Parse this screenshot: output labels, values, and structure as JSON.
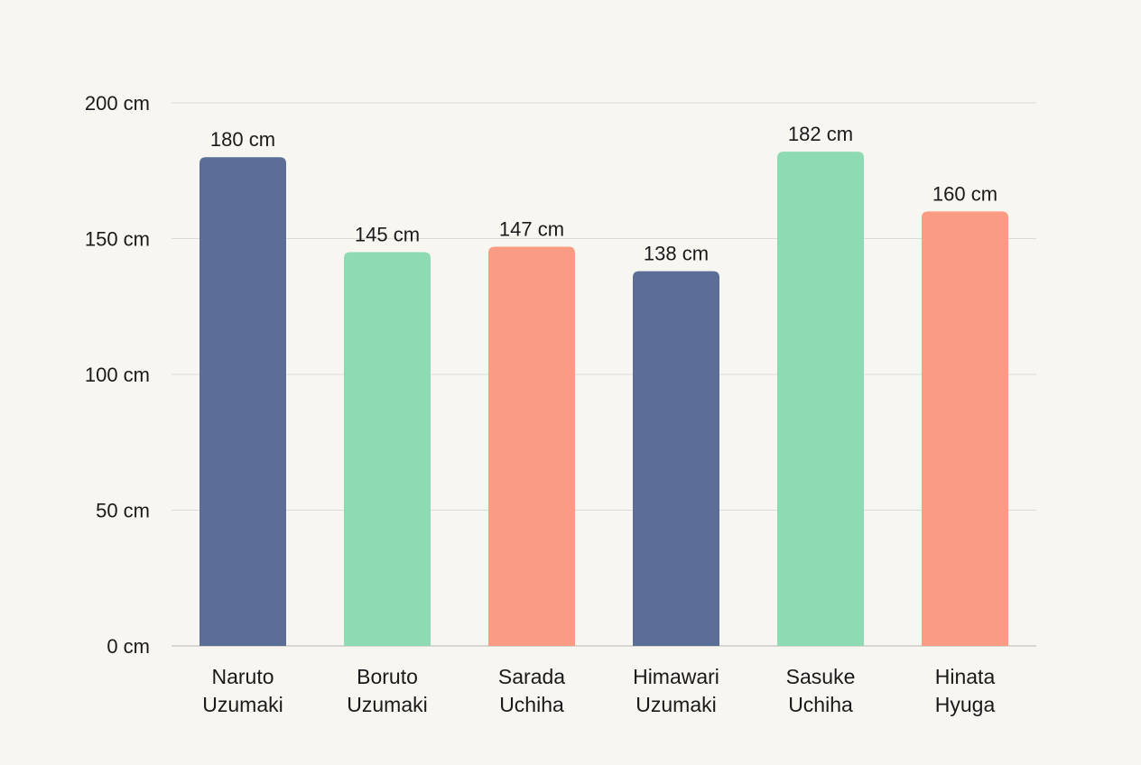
{
  "chart_data": {
    "type": "bar",
    "title": "",
    "xlabel": "",
    "ylabel": "",
    "unit": "cm",
    "categories": [
      "Naruto Uzumaki",
      "Boruto Uzumaki",
      "Sarada Uchiha",
      "Himawari Uzumaki",
      "Sasuke Uchiha",
      "Hinata Hyuga"
    ],
    "category_lines": [
      [
        "Naruto",
        "Uzumaki"
      ],
      [
        "Boruto",
        "Uzumaki"
      ],
      [
        "Sarada",
        "Uchiha"
      ],
      [
        "Himawari",
        "Uzumaki"
      ],
      [
        "Sasuke",
        "Uchiha"
      ],
      [
        "Hinata",
        "Hyuga"
      ]
    ],
    "values": [
      180,
      145,
      147,
      138,
      182,
      160
    ],
    "data_labels": [
      "180 cm",
      "145 cm",
      "147 cm",
      "138 cm",
      "182 cm",
      "160 cm"
    ],
    "bar_colors": [
      "#5a6e98",
      "#8edab3",
      "#fa9c84",
      "#5a6e98",
      "#8edab3",
      "#fa9c84"
    ],
    "ylim": [
      0,
      200
    ],
    "yticks": [
      0,
      50,
      100,
      150,
      200
    ],
    "ytick_labels": [
      "0 cm",
      "50 cm",
      "100 cm",
      "150 cm",
      "200 cm"
    ],
    "grid": true,
    "legend": "none"
  },
  "colors": {
    "background": "#f8f6f0",
    "grid": "#dcdad4",
    "axis": "#b8b6b0"
  }
}
